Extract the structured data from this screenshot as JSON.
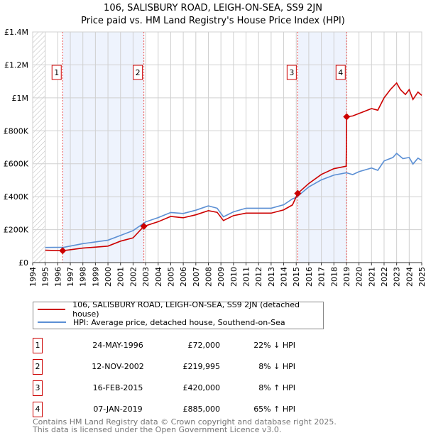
{
  "title": "106, SALISBURY ROAD, LEIGH-ON-SEA, SS9 2JN",
  "subtitle": "Price paid vs. HM Land Registry's House Price Index (HPI)",
  "chart_data": {
    "type": "line",
    "xlim": [
      1994,
      2025
    ],
    "ylim": [
      0,
      1400000
    ],
    "x_ticks": [
      "1994",
      "1995",
      "1996",
      "1997",
      "1998",
      "1999",
      "2000",
      "2001",
      "2002",
      "2003",
      "2004",
      "2005",
      "2006",
      "2007",
      "2008",
      "2009",
      "2010",
      "2011",
      "2012",
      "2013",
      "2014",
      "2015",
      "2016",
      "2017",
      "2018",
      "2019",
      "2020",
      "2021",
      "2022",
      "2023",
      "2024",
      "2025"
    ],
    "y_ticks": [
      {
        "v": 0,
        "label": "£0"
      },
      {
        "v": 200000,
        "label": "£200K"
      },
      {
        "v": 400000,
        "label": "£400K"
      },
      {
        "v": 600000,
        "label": "£600K"
      },
      {
        "v": 800000,
        "label": "£800K"
      },
      {
        "v": 1000000,
        "label": "£1M"
      },
      {
        "v": 1200000,
        "label": "£1.2M"
      },
      {
        "v": 1400000,
        "label": "£1.4M"
      }
    ],
    "series": [
      {
        "name": "106, SALISBURY ROAD, LEIGH-ON-SEA, SS9 2JN (detached house)",
        "color": "#cc0000",
        "x": [
          1995,
          1996.39,
          1998,
          2000,
          2001,
          2002,
          2002.86,
          2004,
          2005,
          2006,
          2007,
          2008,
          2008.7,
          2009.2,
          2010,
          2011,
          2013,
          2014,
          2014.7,
          2015.12,
          2016,
          2017,
          2018,
          2018.98,
          2019.02,
          2019.5,
          2020,
          2021,
          2021.5,
          2022,
          2022.5,
          2023,
          2023.3,
          2023.7,
          2024,
          2024.3,
          2024.7,
          2025
        ],
        "y": [
          75000,
          72000,
          88000,
          100000,
          130000,
          150000,
          219995,
          248000,
          280000,
          272000,
          290000,
          315000,
          305000,
          255000,
          285000,
          300000,
          300000,
          320000,
          350000,
          420000,
          480000,
          535000,
          570000,
          585000,
          885000,
          890000,
          905000,
          935000,
          925000,
          1000000,
          1050000,
          1090000,
          1050000,
          1020000,
          1050000,
          990000,
          1035000,
          1015000
        ]
      },
      {
        "name": "HPI: Average price, detached house, Southend-on-Sea",
        "color": "#5b8fd4",
        "x": [
          1995,
          1996.5,
          1998,
          2000,
          2001,
          2002,
          2003,
          2004,
          2005,
          2006,
          2007,
          2008,
          2008.7,
          2009.2,
          2010,
          2011,
          2012,
          2013,
          2014,
          2014.7,
          2015,
          2016,
          2017,
          2018,
          2019,
          2019.5,
          2020,
          2021,
          2021.5,
          2022,
          2022.7,
          2023,
          2023.5,
          2024,
          2024.3,
          2024.7,
          2025
        ],
        "y": [
          92000,
          93000,
          115000,
          136000,
          165000,
          194000,
          247000,
          273000,
          304000,
          298000,
          318000,
          344000,
          330000,
          278000,
          308000,
          330000,
          330000,
          330000,
          351000,
          387000,
          395000,
          459000,
          502000,
          531000,
          545000,
          534000,
          552000,
          574000,
          560000,
          617000,
          638000,
          663000,
          631000,
          638000,
          598000,
          634000,
          620000
        ]
      }
    ],
    "sales": [
      {
        "n": "1",
        "x": 1996.39,
        "date": "24-MAY-1996",
        "price": "£72,000",
        "value": 72000,
        "hpi": "22% ↓ HPI"
      },
      {
        "n": "2",
        "x": 2002.86,
        "date": "12-NOV-2002",
        "price": "£219,995",
        "value": 219995,
        "hpi": "8% ↓ HPI"
      },
      {
        "n": "3",
        "x": 2015.12,
        "date": "16-FEB-2015",
        "price": "£420,000",
        "value": 420000,
        "hpi": "8% ↑ HPI"
      },
      {
        "n": "4",
        "x": 2019.02,
        "date": "07-JAN-2019",
        "price": "£885,000",
        "value": 885000,
        "hpi": "65% ↑ HPI"
      }
    ]
  },
  "footer": {
    "line1": "Contains HM Land Registry data © Crown copyright and database right 2025.",
    "line2": "This data is licensed under the Open Government Licence v3.0."
  }
}
